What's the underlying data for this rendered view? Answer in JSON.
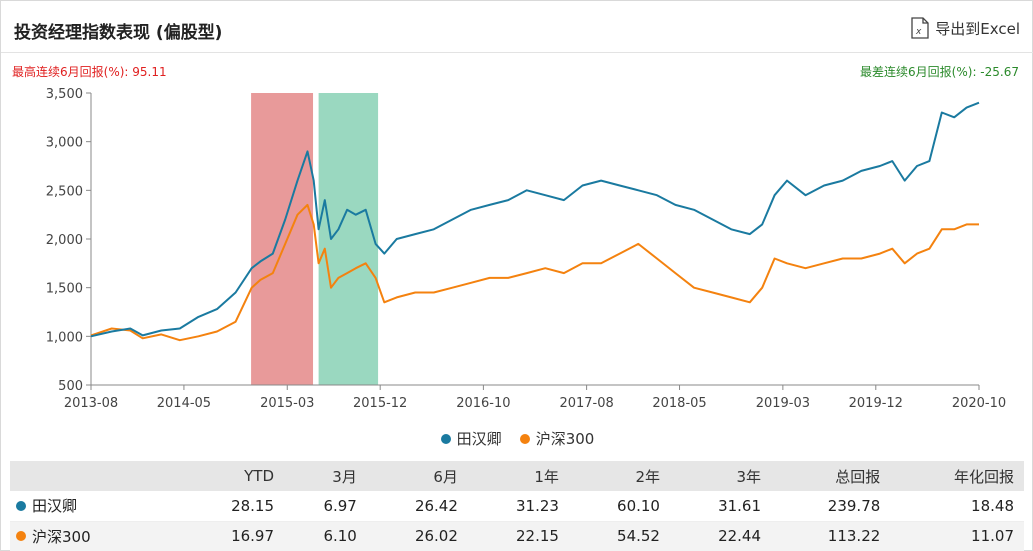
{
  "header": {
    "title": "投资经理指数表现 (偏股型)",
    "export_label": "导出到Excel"
  },
  "stats": {
    "best_6m": "最高连续6月回报(%):  95.11",
    "worst_6m": "最差连续6月回报(%):  -25.67"
  },
  "colors": {
    "series1": "#1a7aa0",
    "series2": "#f4820f",
    "band_red": "#e89a9a",
    "band_green": "#9ad8c0",
    "text_red": "#e02020",
    "text_green": "#2b8a2b"
  },
  "chart_data": {
    "type": "line",
    "ylim": [
      500,
      3500
    ],
    "yticks": [
      "3,500",
      "3,000",
      "2,500",
      "2,000",
      "1,500",
      "1,000",
      "500"
    ],
    "ytick_values": [
      3500,
      3000,
      2500,
      2000,
      1500,
      1000,
      500
    ],
    "xlim": [
      2013.583,
      2020.75
    ],
    "xticks": [
      "2013-08",
      "2014-05",
      "2015-03",
      "2015-12",
      "2016-10",
      "2017-08",
      "2018-05",
      "2019-03",
      "2019-12",
      "2020-10"
    ],
    "xtick_values": [
      2013.583,
      2014.333,
      2015.167,
      2015.917,
      2016.75,
      2017.583,
      2018.333,
      2019.167,
      2019.917,
      2020.75
    ],
    "bands": [
      {
        "from": 2014.875,
        "to": 2015.375,
        "color": "#e89a9a"
      },
      {
        "from": 2015.42,
        "to": 2015.9,
        "color": "#9ad8c0"
      }
    ],
    "series": [
      {
        "name": "田汉卿",
        "color": "#1a7aa0",
        "x": [
          2013.583,
          2013.75,
          2013.9,
          2014.0,
          2014.15,
          2014.3,
          2014.45,
          2014.6,
          2014.75,
          2014.88,
          2014.95,
          2015.05,
          2015.15,
          2015.25,
          2015.33,
          2015.38,
          2015.42,
          2015.47,
          2015.52,
          2015.58,
          2015.65,
          2015.72,
          2015.8,
          2015.88,
          2015.95,
          2016.05,
          2016.2,
          2016.35,
          2016.5,
          2016.65,
          2016.8,
          2016.95,
          2017.1,
          2017.25,
          2017.4,
          2017.55,
          2017.7,
          2017.85,
          2018.0,
          2018.15,
          2018.3,
          2018.45,
          2018.6,
          2018.75,
          2018.9,
          2019.0,
          2019.1,
          2019.2,
          2019.35,
          2019.5,
          2019.65,
          2019.8,
          2019.95,
          2020.05,
          2020.15,
          2020.25,
          2020.35,
          2020.45,
          2020.55,
          2020.65,
          2020.75
        ],
        "y": [
          1000,
          1050,
          1080,
          1010,
          1060,
          1080,
          1200,
          1280,
          1450,
          1700,
          1770,
          1850,
          2200,
          2600,
          2900,
          2600,
          2100,
          2400,
          2000,
          2100,
          2300,
          2250,
          2300,
          1950,
          1850,
          2000,
          2050,
          2100,
          2200,
          2300,
          2350,
          2400,
          2500,
          2450,
          2400,
          2550,
          2600,
          2550,
          2500,
          2450,
          2350,
          2300,
          2200,
          2100,
          2050,
          2150,
          2450,
          2600,
          2450,
          2550,
          2600,
          2700,
          2750,
          2800,
          2600,
          2750,
          2800,
          3300,
          3250,
          3350,
          3400
        ]
      },
      {
        "name": "沪深300",
        "color": "#f4820f",
        "x": [
          2013.583,
          2013.75,
          2013.9,
          2014.0,
          2014.15,
          2014.3,
          2014.45,
          2014.6,
          2014.75,
          2014.88,
          2014.95,
          2015.05,
          2015.15,
          2015.25,
          2015.33,
          2015.38,
          2015.42,
          2015.47,
          2015.52,
          2015.58,
          2015.65,
          2015.72,
          2015.8,
          2015.88,
          2015.95,
          2016.05,
          2016.2,
          2016.35,
          2016.5,
          2016.65,
          2016.8,
          2016.95,
          2017.1,
          2017.25,
          2017.4,
          2017.55,
          2017.7,
          2017.85,
          2018.0,
          2018.15,
          2018.3,
          2018.45,
          2018.6,
          2018.75,
          2018.9,
          2019.0,
          2019.1,
          2019.2,
          2019.35,
          2019.5,
          2019.65,
          2019.8,
          2019.95,
          2020.05,
          2020.15,
          2020.25,
          2020.35,
          2020.45,
          2020.55,
          2020.65,
          2020.75
        ],
        "y": [
          1010,
          1080,
          1060,
          980,
          1020,
          960,
          1000,
          1050,
          1150,
          1500,
          1580,
          1650,
          1950,
          2250,
          2350,
          2150,
          1750,
          1900,
          1500,
          1600,
          1650,
          1700,
          1750,
          1600,
          1350,
          1400,
          1450,
          1450,
          1500,
          1550,
          1600,
          1600,
          1650,
          1700,
          1650,
          1750,
          1750,
          1850,
          1950,
          1800,
          1650,
          1500,
          1450,
          1400,
          1350,
          1500,
          1800,
          1750,
          1700,
          1750,
          1800,
          1800,
          1850,
          1900,
          1750,
          1850,
          1900,
          2100,
          2100,
          2150,
          2150
        ]
      }
    ]
  },
  "legend": [
    {
      "label": "田汉卿",
      "color": "#1a7aa0"
    },
    {
      "label": "沪深300",
      "color": "#f4820f"
    }
  ],
  "table": {
    "headers": [
      "",
      "YTD",
      "3月",
      "6月",
      "1年",
      "2年",
      "3年",
      "总回报",
      "年化回报"
    ],
    "rows": [
      {
        "name": "田汉卿",
        "color": "#1a7aa0",
        "values": [
          "28.15",
          "6.97",
          "26.42",
          "31.23",
          "60.10",
          "31.61",
          "239.78",
          "18.48"
        ]
      },
      {
        "name": "沪深300",
        "color": "#f4820f",
        "values": [
          "16.97",
          "6.10",
          "26.02",
          "22.15",
          "54.52",
          "22.44",
          "113.22",
          "11.07"
        ]
      }
    ]
  }
}
